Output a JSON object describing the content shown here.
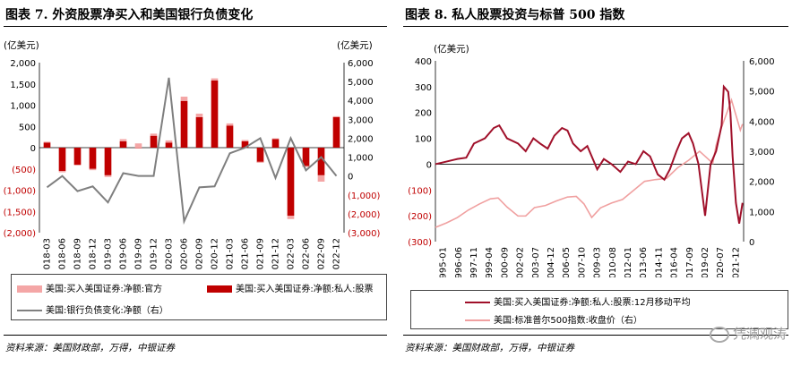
{
  "left": {
    "title": "图表 7. 外资股票净买入和美国银行负债变化",
    "source": "资料来源：美国财政部，万得，中银证券",
    "legend": {
      "official": "美国:买入美国证券:净额:官方",
      "private": "美国:买入美国证券:净额:私人:股票",
      "bank": "美国:银行负债变化:净额（右）"
    }
  },
  "right": {
    "title": "图表 8. 私人股票投资与标普 500 指数",
    "source": "资料来源：美国财政部，万得，中银证券",
    "legend": {
      "flow": "美国:买入美国证券:净额:私人:股票:12月移动平均",
      "sp500": "美国:标准普尔500指数:收盘价（右）"
    }
  },
  "watermark": "凭澜观涛",
  "chart_data": [
    {
      "type": "bar",
      "title": "图表 7. 外资股票净买入和美国银行负债变化",
      "ylabel": "(亿美元)",
      "y2label": "(亿美元)",
      "ylim": [
        -2000,
        2000
      ],
      "y_ticks": [
        -2000,
        -1500,
        -1000,
        -500,
        0,
        500,
        1000,
        1500,
        2000
      ],
      "y_tick_labels": [
        "(2,000)",
        "(1,500)",
        "(1,000)",
        "(500)",
        "0",
        "500",
        "1,000",
        "1,500",
        "2,000"
      ],
      "y2lim": [
        -3000,
        6000
      ],
      "y2_ticks": [
        -3000,
        -2000,
        -1000,
        0,
        1000,
        2000,
        3000,
        4000,
        5000,
        6000
      ],
      "y2_tick_labels": [
        "(3,000)",
        "(2,000)",
        "(1,000)",
        "0",
        "1,000",
        "2,000",
        "3,000",
        "4,000",
        "5,000",
        "6,000"
      ],
      "categories": [
        "2018-03",
        "2018-06",
        "2018-09",
        "2018-12",
        "2019-03",
        "2019-06",
        "2019-09",
        "2019-12",
        "2020-03",
        "2020-06",
        "2020-09",
        "2020-12",
        "2021-03",
        "2021-06",
        "2021-09",
        "2021-12",
        "2022-03",
        "2022-06",
        "2022-09",
        "2022-12"
      ],
      "series": [
        {
          "name": "美国:买入美国证券:净额:官方",
          "values": [
            20,
            -30,
            -20,
            -30,
            -40,
            50,
            100,
            50,
            50,
            100,
            80,
            50,
            50,
            30,
            20,
            20,
            -80,
            20,
            -150,
            20
          ]
        },
        {
          "name": "美国:买入美国证券:净额:私人:股票",
          "values": [
            120,
            -550,
            -400,
            -500,
            -650,
            150,
            0,
            280,
            120,
            1100,
            720,
            1580,
            520,
            150,
            -350,
            200,
            -1600,
            -450,
            -650,
            720
          ]
        },
        {
          "name": "美国:银行负债变化:净额（右）",
          "axis": "right",
          "values": [
            -600,
            0,
            -800,
            -550,
            -1400,
            150,
            0,
            0,
            5200,
            -2400,
            -600,
            -550,
            1200,
            1500,
            2000,
            -100,
            2000,
            300,
            1000,
            0
          ]
        }
      ]
    },
    {
      "type": "line",
      "title": "图表 8. 私人股票投资与标普 500 指数",
      "ylabel": "(亿美元)",
      "ylim": [
        -300,
        400
      ],
      "y_ticks": [
        -300,
        -200,
        -100,
        0,
        100,
        200,
        300,
        400
      ],
      "y_tick_labels": [
        "(300)",
        "(200)",
        "(100)",
        "0",
        "100",
        "200",
        "300",
        "400"
      ],
      "y2lim": [
        0,
        6000
      ],
      "y2_ticks": [
        0,
        1000,
        2000,
        3000,
        4000,
        5000,
        6000
      ],
      "y2_tick_labels": [
        "0",
        "1,000",
        "2,000",
        "3,000",
        "4,000",
        "5,000",
        "6,000"
      ],
      "xlim": [
        1995.0,
        2023.0
      ],
      "x_tick_labels": [
        "1995-01",
        "1996-06",
        "1997-11",
        "1999-04",
        "2000-09",
        "2002-02",
        "2003-07",
        "2004-12",
        "2006-05",
        "2007-10",
        "2009-03",
        "2010-08",
        "2012-01",
        "2013-06",
        "2014-11",
        "2016-04",
        "2017-09",
        "2019-02",
        "2020-07",
        "2021-12"
      ],
      "series": [
        {
          "name": "美国:买入美国证券:净额:私人:股票:12月移动平均",
          "x": [
            1995.0,
            1996.0,
            1997.0,
            1997.8,
            1998.5,
            1999.5,
            2000.3,
            2000.8,
            2001.5,
            2002.5,
            2003.2,
            2003.9,
            2004.5,
            2005.2,
            2005.8,
            2006.5,
            2007.0,
            2007.5,
            2008.2,
            2008.8,
            2009.3,
            2009.7,
            2010.3,
            2011.0,
            2011.8,
            2012.5,
            2013.2,
            2013.9,
            2014.5,
            2015.2,
            2015.8,
            2016.3,
            2016.9,
            2017.4,
            2018.0,
            2018.4,
            2018.9,
            2019.5,
            2020.0,
            2020.5,
            2021.0,
            2021.2,
            2021.6,
            2021.8,
            2022.0,
            2022.3,
            2022.6,
            2022.9
          ],
          "y": [
            0,
            10,
            20,
            25,
            80,
            100,
            140,
            150,
            100,
            80,
            50,
            100,
            80,
            60,
            110,
            140,
            130,
            80,
            50,
            70,
            20,
            -20,
            20,
            0,
            -30,
            10,
            0,
            50,
            30,
            -40,
            -60,
            -20,
            50,
            100,
            120,
            80,
            0,
            -200,
            0,
            50,
            150,
            300,
            280,
            200,
            30,
            -150,
            -230,
            -150
          ]
        },
        {
          "name": "美国:标准普尔500指数:收盘价（右）",
          "axis": "right",
          "x": [
            1995.0,
            1996.0,
            1997.0,
            1998.0,
            1999.0,
            2000.0,
            2000.7,
            2001.5,
            2002.5,
            2003.2,
            2004.0,
            2005.0,
            2006.0,
            2007.0,
            2007.8,
            2008.5,
            2009.2,
            2010.0,
            2011.0,
            2012.0,
            2013.0,
            2014.0,
            2015.0,
            2016.0,
            2017.0,
            2018.0,
            2019.0,
            2020.2,
            2020.5,
            2021.0,
            2021.5,
            2021.9,
            2022.3,
            2022.7,
            2022.9
          ],
          "y": [
            470,
            620,
            800,
            1050,
            1250,
            1420,
            1450,
            1150,
            850,
            850,
            1130,
            1200,
            1350,
            1480,
            1500,
            1250,
            800,
            1120,
            1280,
            1400,
            1700,
            2000,
            2060,
            2100,
            2450,
            2700,
            3000,
            2600,
            3200,
            3800,
            4300,
            4700,
            4200,
            3700,
            3900
          ]
        }
      ]
    }
  ]
}
